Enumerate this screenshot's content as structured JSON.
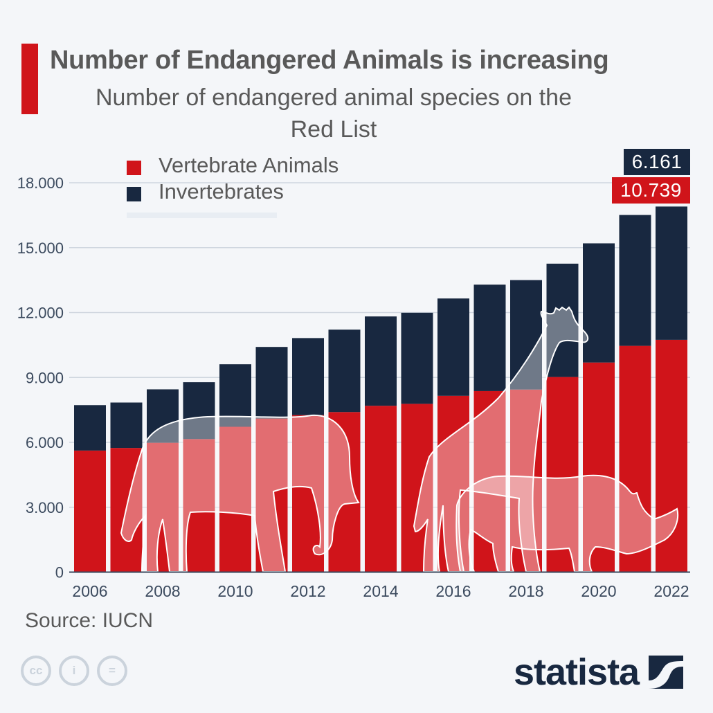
{
  "header": {
    "title": "Number of Endangered Animals is increasing",
    "subtitle_line1": "Number of endangered animal species on the",
    "subtitle_line2": "Red List"
  },
  "legend": [
    {
      "label": "Vertebrate Animals",
      "color": "#d0141a"
    },
    {
      "label": "Invertebrates",
      "color": "#182840"
    }
  ],
  "callouts": {
    "invertebrates_2022": "6.161",
    "vertebrates_2022": "10.739"
  },
  "footer": {
    "source": "Source: IUCN",
    "brand": "statista",
    "license_icons": [
      "cc-icon",
      "attribution-icon",
      "no-derivatives-icon"
    ],
    "license_glyphs": [
      "cc",
      "i",
      "="
    ]
  },
  "chart_data": {
    "type": "bar",
    "stacked": true,
    "title": "Number of Endangered Animals is increasing",
    "subtitle": "Number of endangered animal species on the Red List",
    "xlabel": "",
    "ylabel": "",
    "categories": [
      "2006",
      "2007",
      "2008",
      "2009",
      "2010",
      "2011",
      "2012",
      "2013",
      "2014",
      "2015",
      "2016",
      "2017",
      "2018",
      "2019",
      "2020",
      "2021",
      "2022"
    ],
    "x_tick_labels": [
      "2006",
      "2008",
      "2010",
      "2012",
      "2014",
      "2016",
      "2018",
      "2020",
      "2022"
    ],
    "series": [
      {
        "name": "Vertebrate Animals",
        "color": "#d0141a",
        "values": [
          5620,
          5740,
          5980,
          6150,
          6720,
          7100,
          7260,
          7400,
          7690,
          7780,
          8150,
          8370,
          8440,
          9020,
          9690,
          10460,
          10739
        ]
      },
      {
        "name": "Invertebrates",
        "color": "#182840",
        "values": [
          2100,
          2100,
          2470,
          2630,
          2890,
          3310,
          3560,
          3810,
          4130,
          4210,
          4500,
          4920,
          5060,
          5240,
          5510,
          6050,
          6161
        ]
      }
    ],
    "ylim": [
      0,
      18000
    ],
    "y_ticks": [
      0,
      3000,
      6000,
      9000,
      12000,
      15000,
      18000
    ],
    "y_tick_labels": [
      "0",
      "3.000",
      "6.000",
      "9.000",
      "12.000",
      "15.000",
      "18.000"
    ],
    "grid": true,
    "legend_position": "top-left",
    "annotations": [
      {
        "text": "6.161",
        "series": "Invertebrates",
        "category": "2022"
      },
      {
        "text": "10.739",
        "series": "Vertebrate Animals",
        "category": "2022"
      }
    ],
    "source": "IUCN"
  }
}
